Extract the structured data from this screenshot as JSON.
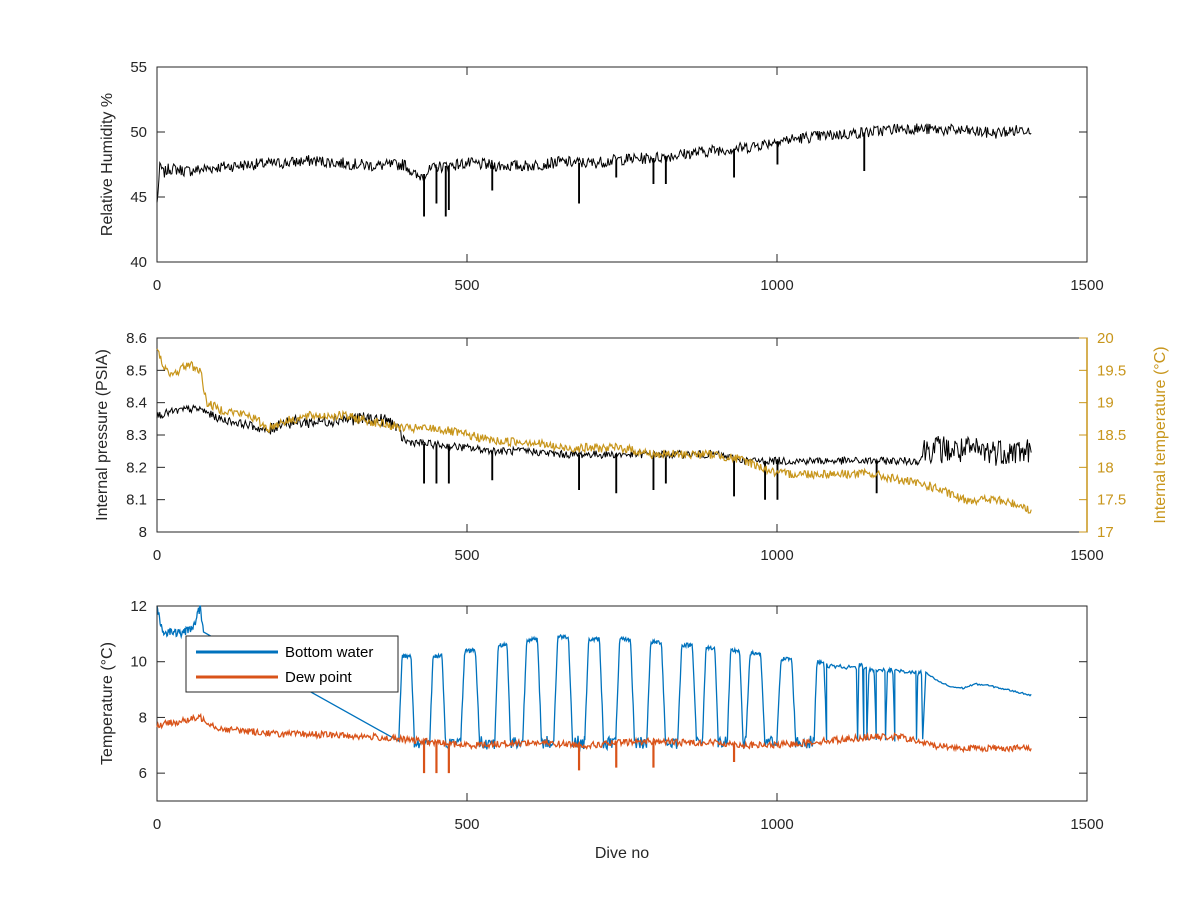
{
  "chart_data": [
    {
      "type": "line",
      "xlabel": "",
      "ylabel": "Relative Humidity %",
      "xlim": [
        0,
        1500
      ],
      "ylim": [
        40,
        55
      ],
      "xticks": [
        "0",
        "500",
        "1000",
        "1500"
      ],
      "yticks": [
        "40",
        "45",
        "50",
        "55"
      ],
      "series": [
        {
          "color": "#000000",
          "x": [
            0,
            5,
            10,
            20,
            50,
            100,
            150,
            200,
            250,
            300,
            350,
            400,
            420,
            450,
            500,
            550,
            600,
            650,
            700,
            750,
            800,
            850,
            900,
            950,
            1000,
            1050,
            1100,
            1150,
            1200,
            1250,
            1300,
            1350,
            1400,
            1410
          ],
          "y": [
            44.5,
            47.5,
            46.8,
            47.2,
            47.0,
            47.3,
            47.5,
            47.6,
            47.8,
            47.6,
            47.4,
            47.5,
            46.5,
            47.3,
            47.6,
            47.4,
            47.4,
            47.7,
            47.6,
            47.9,
            48.0,
            48.3,
            48.6,
            48.8,
            49.3,
            49.6,
            49.8,
            50.0,
            50.3,
            50.2,
            50.1,
            49.9,
            50.2,
            50.3
          ]
        }
      ],
      "dips": [
        [
          430,
          43.5
        ],
        [
          450,
          44.5
        ],
        [
          465,
          43.5
        ],
        [
          470,
          44.0
        ],
        [
          540,
          45.5
        ],
        [
          680,
          44.5
        ],
        [
          740,
          46.5
        ],
        [
          800,
          46.0
        ],
        [
          820,
          46.0
        ],
        [
          930,
          46.5
        ],
        [
          1000,
          47.5
        ],
        [
          1140,
          47.0
        ]
      ]
    },
    {
      "type": "line",
      "xlabel": "",
      "ylabel": "Internal pressure (PSIA)",
      "ylabel_right": "Internal temperature (°C)",
      "xlim": [
        0,
        1500
      ],
      "ylim": [
        8.0,
        8.6
      ],
      "ylim_right": [
        17,
        20
      ],
      "xticks": [
        "0",
        "500",
        "1000",
        "1500"
      ],
      "yticks": [
        "8",
        "8.1",
        "8.2",
        "8.3",
        "8.4",
        "8.5",
        "8.6"
      ],
      "yticks_right": [
        "17",
        "17.5",
        "18",
        "18.5",
        "19",
        "19.5",
        "20"
      ],
      "series": [
        {
          "color": "#000000",
          "axis": "left",
          "x": [
            0,
            20,
            50,
            70,
            100,
            150,
            180,
            200,
            250,
            300,
            350,
            380,
            400,
            450,
            500,
            550,
            600,
            650,
            700,
            750,
            800,
            850,
            900,
            950,
            1000,
            1050,
            1100,
            1150,
            1200,
            1230,
            1240,
            1300,
            1350,
            1400,
            1410
          ],
          "y": [
            8.36,
            8.37,
            8.38,
            8.38,
            8.35,
            8.33,
            8.31,
            8.34,
            8.34,
            8.35,
            8.35,
            8.34,
            8.28,
            8.27,
            8.26,
            8.25,
            8.25,
            8.24,
            8.24,
            8.24,
            8.24,
            8.24,
            8.24,
            8.22,
            8.22,
            8.22,
            8.22,
            8.22,
            8.22,
            8.22,
            8.26,
            8.25,
            8.25,
            8.25,
            8.25
          ]
        },
        {
          "color": "#c8961c",
          "axis": "right",
          "x": [
            0,
            20,
            50,
            70,
            80,
            100,
            150,
            180,
            200,
            250,
            300,
            350,
            400,
            450,
            500,
            550,
            600,
            650,
            700,
            750,
            800,
            850,
            900,
            950,
            1000,
            1050,
            1100,
            1150,
            1200,
            1250,
            1300,
            1350,
            1400,
            1410
          ],
          "y": [
            19.8,
            19.4,
            19.6,
            19.5,
            19.0,
            18.9,
            18.8,
            18.6,
            18.7,
            18.8,
            18.8,
            18.7,
            18.6,
            18.6,
            18.5,
            18.4,
            18.4,
            18.3,
            18.3,
            18.3,
            18.2,
            18.2,
            18.2,
            18.1,
            17.9,
            17.9,
            17.9,
            17.9,
            17.8,
            17.7,
            17.5,
            17.5,
            17.4,
            17.3
          ]
        }
      ],
      "dips": [
        [
          430,
          8.15
        ],
        [
          450,
          8.15
        ],
        [
          470,
          8.15
        ],
        [
          540,
          8.16
        ],
        [
          680,
          8.13
        ],
        [
          740,
          8.12
        ],
        [
          800,
          8.13
        ],
        [
          820,
          8.15
        ],
        [
          930,
          8.11
        ],
        [
          980,
          8.1
        ],
        [
          1000,
          8.1
        ],
        [
          1160,
          8.12
        ]
      ]
    },
    {
      "type": "line",
      "xlabel": "Dive no",
      "ylabel": "Temperature (°C)",
      "xlim": [
        0,
        1500
      ],
      "ylim": [
        5,
        12
      ],
      "xticks": [
        "0",
        "500",
        "1000",
        "1500"
      ],
      "yticks": [
        "6",
        "8",
        "10",
        "12"
      ],
      "legend": {
        "position": "top-left"
      },
      "series": [
        {
          "name": "Bottom water",
          "color": "#0072bd",
          "x": [
            0,
            10,
            20,
            40,
            60,
            70,
            75
          ],
          "y": [
            12.0,
            11.0,
            11.1,
            11.0,
            11.3,
            12.0,
            11.0
          ],
          "cycles_x": [
            [
              390,
              415
            ],
            [
              440,
              465
            ],
            [
              490,
              520
            ],
            [
              545,
              570
            ],
            [
              590,
              620
            ],
            [
              640,
              670
            ],
            [
              690,
              720
            ],
            [
              740,
              770
            ],
            [
              790,
              820
            ],
            [
              840,
              870
            ],
            [
              880,
              905
            ],
            [
              920,
              945
            ],
            [
              950,
              980
            ],
            [
              1000,
              1030
            ],
            [
              1060,
              1080
            ],
            [
              1130,
              1140
            ],
            [
              1145,
              1160
            ],
            [
              1175,
              1190
            ],
            [
              1225,
              1235
            ]
          ],
          "cycles_peak": [
            10.2,
            10.2,
            10.4,
            10.6,
            10.8,
            10.9,
            10.8,
            10.8,
            10.7,
            10.6,
            10.5,
            10.4,
            10.3,
            10.1,
            10.0,
            9.9,
            9.7,
            9.7,
            9.6
          ],
          "tail_x": [
            1240,
            1260,
            1280,
            1300,
            1320,
            1340,
            1360,
            1380,
            1400,
            1410
          ],
          "tail_y": [
            9.6,
            9.3,
            9.1,
            9.05,
            9.2,
            9.15,
            9.05,
            8.95,
            8.85,
            8.8
          ]
        },
        {
          "name": "Dew point",
          "color": "#d95319",
          "x": [
            0,
            20,
            50,
            70,
            100,
            150,
            200,
            250,
            300,
            350,
            400,
            450,
            500,
            550,
            600,
            650,
            700,
            750,
            800,
            850,
            900,
            950,
            1000,
            1050,
            1100,
            1150,
            1200,
            1250,
            1300,
            1350,
            1400,
            1410
          ],
          "y": [
            7.7,
            7.8,
            7.9,
            8.0,
            7.6,
            7.5,
            7.4,
            7.4,
            7.35,
            7.3,
            7.2,
            7.1,
            7.0,
            7.05,
            7.1,
            7.05,
            7.0,
            7.1,
            7.15,
            7.1,
            7.1,
            7.0,
            7.0,
            7.1,
            7.2,
            7.3,
            7.3,
            7.0,
            6.9,
            6.9,
            6.9,
            6.9
          ]
        }
      ],
      "dips": [
        [
          430,
          6.0
        ],
        [
          450,
          6.0
        ],
        [
          470,
          6.0
        ],
        [
          680,
          6.1
        ],
        [
          740,
          6.2
        ],
        [
          800,
          6.2
        ],
        [
          930,
          6.4
        ]
      ]
    }
  ]
}
